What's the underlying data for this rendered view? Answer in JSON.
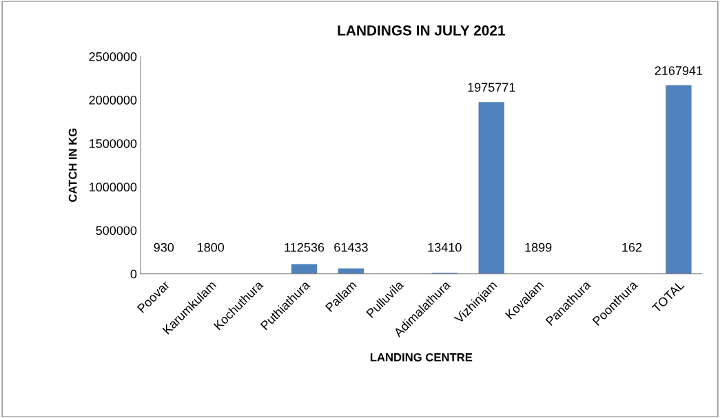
{
  "chart_data": {
    "type": "bar",
    "title": "LANDINGS IN JULY 2021",
    "xlabel": "LANDING CENTRE",
    "ylabel": "CATCH IN KG",
    "categories": [
      "Poovar",
      "Karumkulam",
      "Kochuthura",
      "Puthiathura",
      "Pallam",
      "Pulluvila",
      "Adimalathura",
      "Vizhinjam",
      "Kovalam",
      "Panathura",
      "Poonthura",
      "TOTAL"
    ],
    "values": [
      930,
      1800,
      null,
      112536,
      61433,
      null,
      13410,
      1975771,
      1899,
      null,
      162,
      2167941
    ],
    "value_labels": [
      "930",
      "1800",
      null,
      "112536",
      "61433",
      null,
      "13410",
      "1975771",
      "1899",
      null,
      "162",
      "2167941"
    ],
    "color": "#4f81bd",
    "ylim": [
      0,
      2500000
    ],
    "yticks": [
      0,
      500000,
      1000000,
      1500000,
      2000000,
      2500000
    ],
    "grid": false,
    "legend": false
  }
}
